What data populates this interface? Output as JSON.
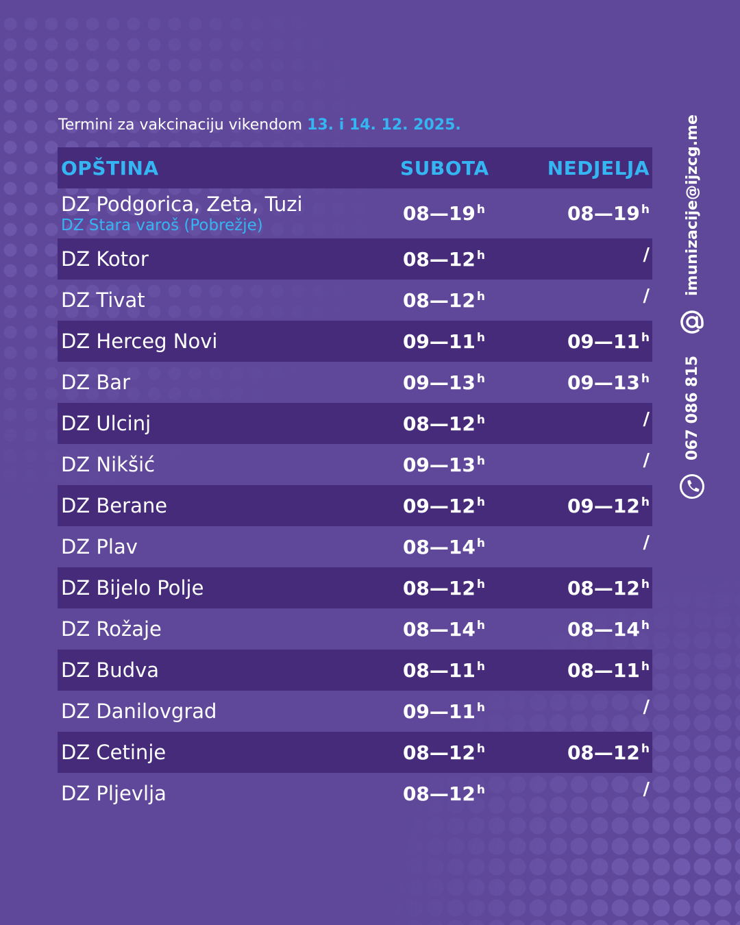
{
  "intro": {
    "text": "Termini za vakcinaciju vikendom ",
    "date": "13. i 14. 12. 2025."
  },
  "table": {
    "headers": {
      "opstina": "OPŠTINA",
      "subota": "SUBOTA",
      "nedjelja": "NEDJELJA"
    },
    "rows": [
      {
        "name": "DZ Podgorica, Zeta, Tuzi",
        "sub": "DZ Stara varoš (Pobrežje)",
        "sat": "08—19",
        "sun": "08—19"
      },
      {
        "name": "DZ Kotor",
        "sat": "08—12",
        "sun": "/"
      },
      {
        "name": "DZ Tivat",
        "sat": "08—12",
        "sun": "/"
      },
      {
        "name": "DZ Herceg Novi",
        "sat": "09—11",
        "sun": "09—11"
      },
      {
        "name": "DZ Bar",
        "sat": "09—13",
        "sun": "09—13"
      },
      {
        "name": "DZ Ulcinj",
        "sat": "08—12",
        "sun": "/"
      },
      {
        "name": "DZ Nikšić",
        "sat": "09—13",
        "sun": "/"
      },
      {
        "name": "DZ Berane",
        "sat": "09—12",
        "sun": "09—12"
      },
      {
        "name": "DZ Plav",
        "sat": "08—14",
        "sun": "/"
      },
      {
        "name": "DZ Bijelo Polje",
        "sat": "08—12",
        "sun": "08—12"
      },
      {
        "name": "DZ Rožaje",
        "sat": "08—14",
        "sun": "08—14"
      },
      {
        "name": "DZ Budva",
        "sat": "08—11",
        "sun": "08—11"
      },
      {
        "name": "DZ Danilovgrad",
        "sat": "09—11",
        "sun": "/"
      },
      {
        "name": "DZ Cetinje",
        "sat": "08—12",
        "sun": "08—12"
      },
      {
        "name": "DZ Pljevlja",
        "sat": "08—12",
        "sun": "/"
      }
    ],
    "hour_suffix": "h"
  },
  "contact": {
    "email": "imunizacije@ijzcg.me",
    "phone": "067 086 815",
    "email_icon": "at-sign-icon",
    "phone_icon": "phone-icon"
  },
  "colors": {
    "background": "#5f4899",
    "row_dark": "#452b7a",
    "accent": "#35b6f2"
  }
}
